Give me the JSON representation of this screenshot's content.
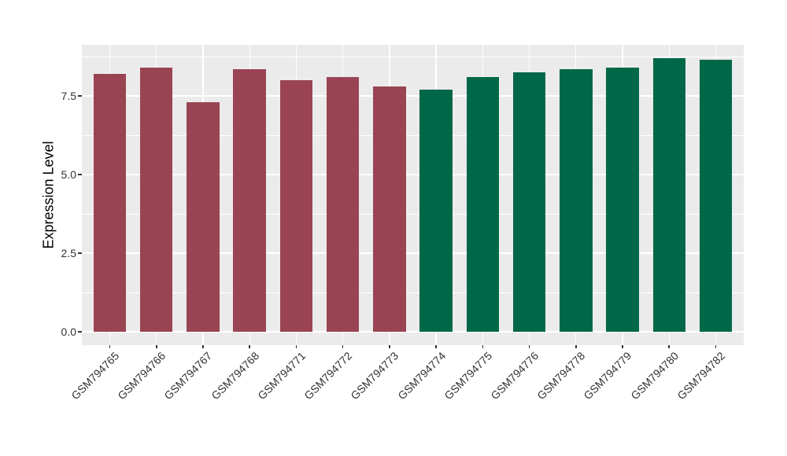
{
  "figure": {
    "background_color": "#FFFFFF",
    "panel_color": "#EBEBEB",
    "grid_color": "#FFFFFF",
    "axis_text_color": "#333333",
    "axis_title_color": "#000000"
  },
  "chart_data": {
    "type": "bar",
    "title": "",
    "xlabel": "",
    "ylabel": "Expression Level",
    "categories": [
      "GSM794765",
      "GSM794766",
      "GSM794767",
      "GSM794768",
      "GSM794771",
      "GSM794772",
      "GSM794773",
      "GSM794774",
      "GSM794775",
      "GSM794776",
      "GSM794778",
      "GSM794779",
      "GSM794780",
      "GSM794782"
    ],
    "values": [
      8.2,
      8.4,
      7.3,
      8.35,
      8.0,
      8.1,
      7.8,
      7.7,
      8.1,
      8.25,
      8.35,
      8.4,
      8.7,
      8.65
    ],
    "bar_colors": [
      "#9A4453",
      "#9A4453",
      "#9A4453",
      "#9A4453",
      "#9A4453",
      "#9A4453",
      "#9A4453",
      "#006849",
      "#006849",
      "#006849",
      "#006849",
      "#006849",
      "#006849",
      "#006849"
    ],
    "color_groups": [
      {
        "color": "#9A4453",
        "count": 7
      },
      {
        "color": "#006849",
        "count": 7
      }
    ],
    "ylim": [
      -0.44,
      9.14
    ],
    "yticks": [
      0.0,
      2.5,
      5.0,
      7.5
    ],
    "ytick_labels": [
      "0.0",
      "2.5",
      "5.0",
      "7.5"
    ],
    "minor_gridlines": [
      1.25,
      3.75,
      6.25,
      8.75
    ],
    "grid": "on",
    "legend_position": "none",
    "x_label_rotation_deg": 45
  }
}
